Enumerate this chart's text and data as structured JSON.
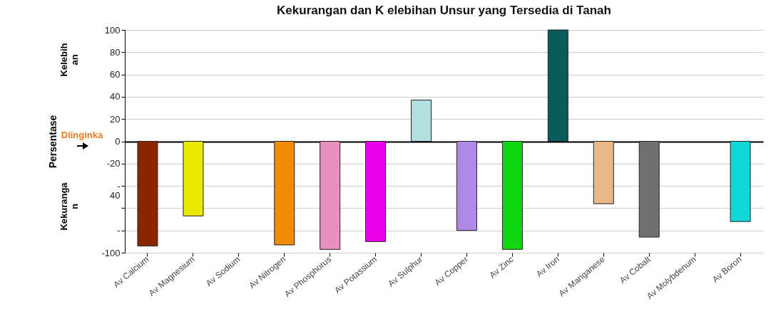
{
  "chart_data": {
    "type": "bar",
    "title": "Kekurangan dan K elebihan Unsur yang Tersedia di Tanah",
    "ylabel": "Persentase",
    "annotations": [
      "Kelebih\nan",
      "Diinginka",
      "Kekuranga\nn"
    ],
    "categories": [
      "Av Calcium",
      "Av Magnesium",
      "Av Sodium",
      "Av Nitrogen",
      "Av Phosphorus",
      "Av Potassium",
      "Av Sulphur",
      "Av Copper",
      "Av Zinc",
      "Av Iron",
      "Av Manganese",
      "Av Cobalt",
      "Av Molybdenum",
      "Av Boron"
    ],
    "values": [
      -94,
      -67,
      null,
      -93,
      -97,
      -90,
      37,
      -80,
      -97,
      100,
      -56,
      -86,
      null,
      -72
    ],
    "colors": [
      "#8b2500",
      "#e8e800",
      null,
      "#f08c00",
      "#e890c0",
      "#e800e8",
      "#b0e0e0",
      "#b088e8",
      "#10d810",
      "#0a5c5c",
      "#e8b888",
      "#707070",
      null,
      "#10d8d8"
    ],
    "ylim": [
      -100,
      100
    ],
    "yticks": [
      {
        "value": -100,
        "label": "-100"
      },
      {
        "value": -80,
        "label": "-"
      },
      {
        "value": -60,
        "label": null
      },
      {
        "value": -40,
        "label": "-\n40"
      },
      -20,
      0,
      20,
      40,
      60,
      80,
      100
    ],
    "grid": "y"
  }
}
